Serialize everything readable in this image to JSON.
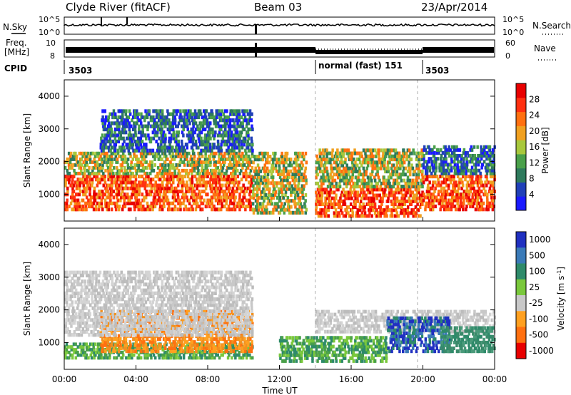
{
  "header": {
    "title": "Clyde River (fitACF)",
    "beam": "Beam 03",
    "date": "23/Apr/2014"
  },
  "sky_panel": {
    "left_label": "N.Sky",
    "right_label": "N.Search",
    "y_ticks": [
      "10^5",
      "10^0"
    ]
  },
  "freq_panel": {
    "left_label_line1": "Freq.",
    "left_label_line2": "[MHz]",
    "left_ticks": [
      "10",
      "8"
    ],
    "right_label": "Nave",
    "right_ticks": [
      "60",
      "0"
    ]
  },
  "cpid": {
    "label": "CPID",
    "segments": [
      {
        "start_hour": 0.0,
        "end_hour": 14.0,
        "text": "3503"
      },
      {
        "start_hour": 14.0,
        "end_hour": 19.7,
        "text": "normal (fast) 151"
      },
      {
        "start_hour": 19.7,
        "end_hour": 24.0,
        "text": "3503"
      }
    ]
  },
  "chart_data": [
    {
      "type": "heatmap",
      "quantity": "power",
      "ylabel": "Slant Range [km]",
      "ylim": [
        180,
        4500
      ],
      "y_ticks": [
        1000,
        2000,
        3000,
        4000
      ],
      "xlim": [
        0,
        24
      ],
      "colorbar_label": "Power [dB]",
      "colorbar_ticks": [
        4,
        8,
        12,
        16,
        20,
        24,
        28
      ],
      "colorbar_range": [
        0,
        32
      ],
      "colorbar_colors": [
        "#1a1aff",
        "#2040b8",
        "#2e7a5c",
        "#4aa04a",
        "#a8c83c",
        "#f0a020",
        "#ff7010",
        "#ff3010",
        "#e80000"
      ],
      "echo_bands": [
        {
          "x0": 0,
          "x1": 10.5,
          "y0": 500,
          "y1": 1600,
          "level": "strong"
        },
        {
          "x0": 0,
          "x1": 10.5,
          "y0": 1600,
          "y1": 2300,
          "level": "medium"
        },
        {
          "x0": 2,
          "x1": 10.5,
          "y0": 2300,
          "y1": 3600,
          "level": "weak"
        },
        {
          "x0": 10.5,
          "x1": 13.5,
          "y0": 400,
          "y1": 2300,
          "level": "medium"
        },
        {
          "x0": 14,
          "x1": 20,
          "y0": 300,
          "y1": 1200,
          "level": "strong"
        },
        {
          "x0": 14,
          "x1": 20,
          "y0": 1200,
          "y1": 2400,
          "level": "medium"
        },
        {
          "x0": 20,
          "x1": 24,
          "y0": 500,
          "y1": 1600,
          "level": "strong"
        },
        {
          "x0": 20,
          "x1": 24,
          "y0": 1600,
          "y1": 2500,
          "level": "weak"
        }
      ]
    },
    {
      "type": "heatmap",
      "quantity": "velocity",
      "ylabel": "Slant Range [km]",
      "ylim": [
        180,
        4500
      ],
      "y_ticks": [
        1000,
        2000,
        3000,
        4000
      ],
      "xlim": [
        0,
        24
      ],
      "xlabel": "Time UT",
      "x_ticks": [
        "00:00",
        "04:00",
        "08:00",
        "12:00",
        "16:00",
        "20:00",
        "00:00"
      ],
      "colorbar_label": "Velocity [m s",
      "colorbar_label_sup": "-1",
      "colorbar_label_end": "]",
      "colorbar_ticks": [
        "1000",
        "500",
        "100",
        "25",
        "-25",
        "-100",
        "-500",
        "-1000"
      ],
      "colorbar_colors": [
        "#2030c0",
        "#3a7ab8",
        "#2e8a6a",
        "#7ac83c",
        "#c8c8c8",
        "#ffa020",
        "#ff7010",
        "#e80000"
      ],
      "echo_bands": [
        {
          "x0": 0,
          "x1": 10.5,
          "y0": 500,
          "y1": 1000,
          "level": "green"
        },
        {
          "x0": 2,
          "x1": 10.5,
          "y0": 700,
          "y1": 2000,
          "level": "orange"
        },
        {
          "x0": 0,
          "x1": 10.5,
          "y0": 1200,
          "y1": 3200,
          "level": "gray"
        },
        {
          "x0": 12,
          "x1": 18,
          "y0": 400,
          "y1": 1200,
          "level": "green"
        },
        {
          "x0": 14,
          "x1": 24,
          "y0": 1300,
          "y1": 2000,
          "level": "gray"
        },
        {
          "x0": 18,
          "x1": 21.5,
          "y0": 700,
          "y1": 1800,
          "level": "blue"
        },
        {
          "x0": 21,
          "x1": 24,
          "y0": 700,
          "y1": 1500,
          "level": "teal"
        }
      ]
    }
  ]
}
